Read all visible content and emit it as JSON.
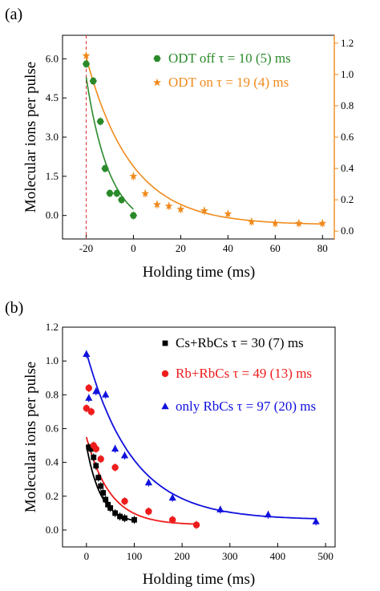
{
  "panel_labels": [
    "(a)",
    "(b)"
  ],
  "chart_data": [
    {
      "type": "scatter",
      "panel": "(a)",
      "xlabel": "Holding time (ms)",
      "ylabel": "Molecular ions per pulse",
      "xlim": [
        -30,
        85
      ],
      "ylim_left": [
        -0.9,
        6.9
      ],
      "ylim_right": [
        -0.05,
        1.25
      ],
      "x_ticks": [
        -20,
        0,
        20,
        40,
        60,
        80
      ],
      "y_ticks_left": [
        0.0,
        1.5,
        3.0,
        4.5,
        6.0
      ],
      "y_ticks_right": [
        0.0,
        0.2,
        0.4,
        0.6,
        0.8,
        1.0,
        1.2
      ],
      "x_tick_labels": [
        "-20",
        "0",
        "20",
        "40",
        "60",
        "80"
      ],
      "y_tick_labels_left": [
        "0.0",
        "1.5",
        "3.0",
        "4.5",
        "6.0"
      ],
      "y_tick_labels_right": [
        "0.0",
        "0.2",
        "0.4",
        "0.6",
        "0.8",
        "1.0",
        "1.2"
      ],
      "vline_x": -20,
      "series": [
        {
          "name": "ODT off",
          "label": "ODT off τ = 10 (5)  ms",
          "axis": "left",
          "color": "#2a8a2a",
          "marker": "hexagon",
          "x": [
            -20,
            -17,
            -14,
            -12,
            -10,
            -7,
            -5,
            0
          ],
          "y": [
            5.8,
            5.15,
            3.6,
            1.8,
            0.85,
            0.85,
            0.6,
            0.0
          ],
          "fit": {
            "A": 5.85,
            "tau": 10,
            "C": -0.55,
            "x0": -20,
            "xmax": 0
          }
        },
        {
          "name": "ODT on",
          "label": "ODT on  τ = 19 (4)  ms",
          "axis": "right",
          "color": "#f08a1c",
          "marker": "star",
          "x": [
            -20,
            0,
            5,
            10,
            15,
            20,
            30,
            40,
            50,
            60,
            70,
            80
          ],
          "y": [
            1.12,
            0.35,
            0.24,
            0.17,
            0.16,
            0.14,
            0.13,
            0.11,
            0.06,
            0.05,
            0.05,
            0.05
          ],
          "fit": {
            "A": 1.07,
            "tau": 19,
            "C": 0.04,
            "x0": -20,
            "xmax": 80
          }
        }
      ]
    },
    {
      "type": "scatter",
      "panel": "(b)",
      "xlabel": "Holding time (ms)",
      "ylabel": "Molecular ions per pulse",
      "xlim": [
        -50,
        520
      ],
      "ylim": [
        -0.1,
        1.2
      ],
      "x_ticks": [
        0,
        100,
        200,
        300,
        400,
        500
      ],
      "y_ticks": [
        0.0,
        0.2,
        0.4,
        0.6,
        0.8,
        1.0,
        1.2
      ],
      "x_tick_labels": [
        "0",
        "100",
        "200",
        "300",
        "400",
        "500"
      ],
      "y_tick_labels": [
        "0.0",
        "0.2",
        "0.4",
        "0.6",
        "0.8",
        "1.0",
        "1.2"
      ],
      "series": [
        {
          "name": "Cs+RbCs",
          "label": "Cs+RbCs  τ = 30 (7) ms",
          "color": "#000000",
          "marker": "square",
          "x": [
            5,
            10,
            15,
            20,
            25,
            30,
            35,
            40,
            45,
            50,
            60,
            70,
            80,
            100
          ],
          "y": [
            0.49,
            0.48,
            0.43,
            0.38,
            0.31,
            0.26,
            0.22,
            0.18,
            0.15,
            0.13,
            0.1,
            0.08,
            0.07,
            0.06
          ],
          "fit": {
            "A": 0.46,
            "tau": 30,
            "C": 0.04,
            "x0": 0,
            "xmax": 100
          }
        },
        {
          "name": "Rb+RbCs",
          "label": "Rb+RbCs  τ = 49 (13) ms",
          "color": "#ee1c1c",
          "marker": "circle",
          "x": [
            0,
            5,
            10,
            15,
            20,
            30,
            60,
            80,
            130,
            180,
            230
          ],
          "y": [
            0.72,
            0.84,
            0.7,
            0.5,
            0.48,
            0.42,
            0.37,
            0.17,
            0.11,
            0.06,
            0.03
          ],
          "fit": {
            "A": 0.52,
            "tau": 49,
            "C": 0.03,
            "x0": 0,
            "xmax": 230
          }
        },
        {
          "name": "only RbCs",
          "label": "only RbCs  τ = 97 (20) ms",
          "color": "#1010dd",
          "marker": "triangle",
          "x": [
            0,
            5,
            20,
            40,
            60,
            80,
            130,
            180,
            280,
            380,
            480
          ],
          "y": [
            1.04,
            0.78,
            0.82,
            0.8,
            0.48,
            0.44,
            0.28,
            0.19,
            0.12,
            0.09,
            0.05
          ],
          "fit": {
            "A": 0.99,
            "tau": 97,
            "C": 0.06,
            "x0": 0,
            "xmax": 480
          }
        }
      ]
    }
  ]
}
